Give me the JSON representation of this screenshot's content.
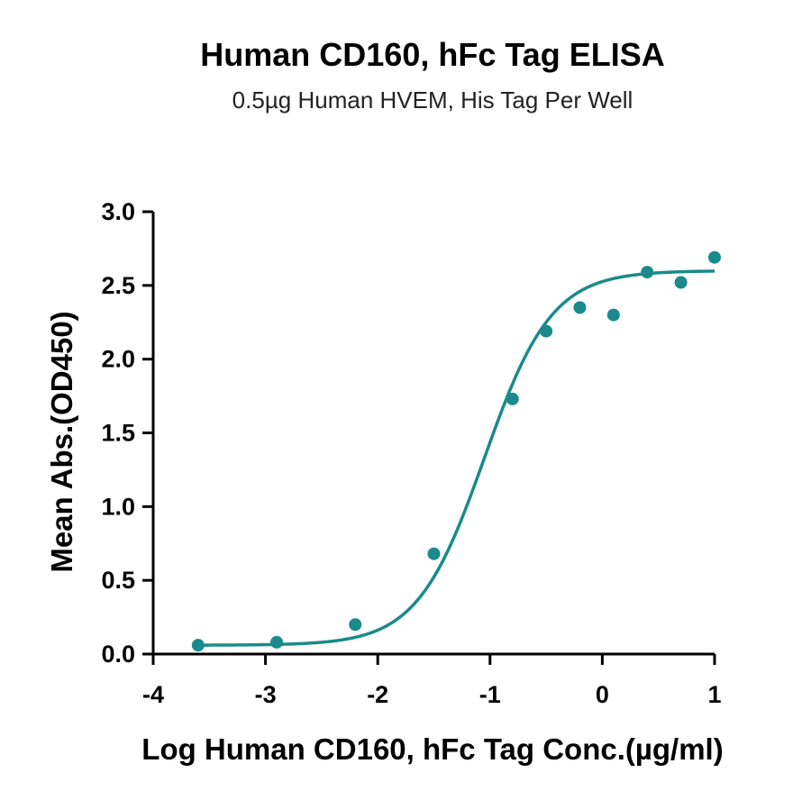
{
  "chart_data": {
    "type": "scatter",
    "title": "Human CD160, hFc Tag ELISA",
    "subtitle": "0.5µg Human HVEM, His Tag Per Well",
    "xlabel": "Log Human CD160, hFc Tag Conc.(µg/ml)",
    "ylabel": "Mean Abs.(OD450)",
    "xlim": [
      -4,
      1
    ],
    "ylim": [
      0,
      3
    ],
    "x_ticks": [
      -4,
      -3,
      -2,
      -1,
      0,
      1
    ],
    "x_tick_labels": [
      "-4",
      "-3",
      "-2",
      "-1",
      "0",
      "1"
    ],
    "y_ticks": [
      0,
      0.5,
      1,
      1.5,
      2,
      2.5,
      3
    ],
    "y_tick_labels": [
      "0.0",
      "0.5",
      "1.0",
      "1.5",
      "2.0",
      "2.5",
      "3.0"
    ],
    "grid": false,
    "series": [
      {
        "color": "#1a8a8a",
        "points": [
          {
            "x": -3.6,
            "y": 0.06
          },
          {
            "x": -2.9,
            "y": 0.08
          },
          {
            "x": -2.2,
            "y": 0.2
          },
          {
            "x": -1.5,
            "y": 0.68
          },
          {
            "x": -0.8,
            "y": 1.73
          },
          {
            "x": -0.5,
            "y": 2.19
          },
          {
            "x": -0.2,
            "y": 2.35
          },
          {
            "x": 0.1,
            "y": 2.3
          },
          {
            "x": 0.4,
            "y": 2.59
          },
          {
            "x": 0.7,
            "y": 2.52
          },
          {
            "x": 1.0,
            "y": 2.69
          }
        ],
        "fit": {
          "model": "4PL",
          "bottom": 0.06,
          "top": 2.6,
          "logEC50": -1.05,
          "hill": 1.45,
          "x_start": -3.6,
          "x_end": 1.0
        }
      }
    ]
  }
}
